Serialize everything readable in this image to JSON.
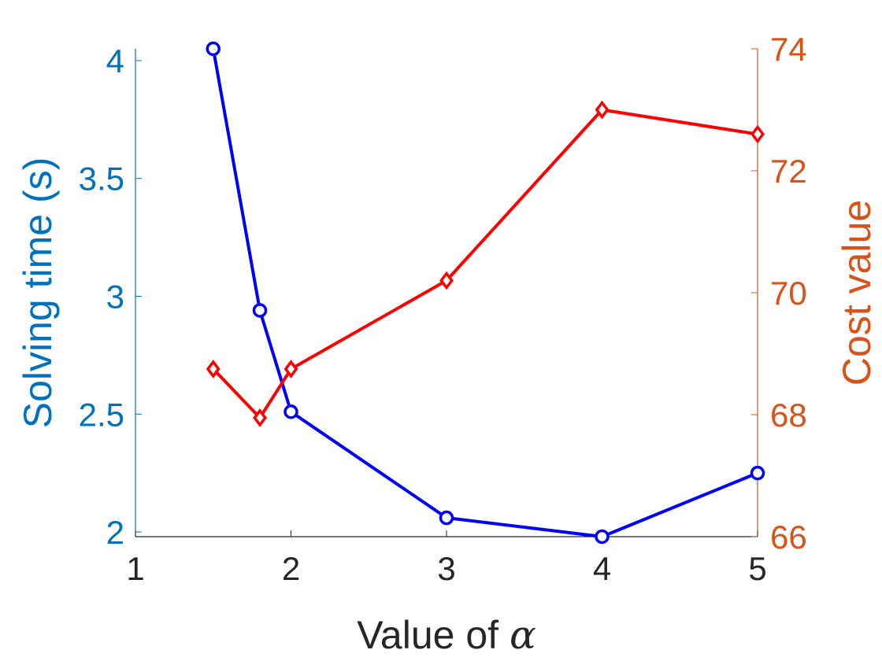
{
  "chart_data": {
    "type": "line",
    "x": [
      1.5,
      1.8,
      2,
      3,
      4,
      5
    ],
    "xlim": [
      1,
      5
    ],
    "x_ticks": [
      "1",
      "2",
      "3",
      "4",
      "5"
    ],
    "xlabel": "Value of ",
    "xlabel_symbol": "α",
    "y_left": {
      "label": "Solving time (s)",
      "lim": [
        1.98,
        4.05
      ],
      "ticks": [
        "2",
        "2.5",
        "3",
        "3.5",
        "4"
      ],
      "color": "#0072BD"
    },
    "y_right": {
      "label": "Cost value",
      "lim": [
        66,
        74
      ],
      "ticks": [
        "66",
        "68",
        "70",
        "72",
        "74"
      ],
      "color": "#D95319"
    },
    "series": [
      {
        "axis": "left",
        "values": [
          4.05,
          2.94,
          2.51,
          2.06,
          1.98,
          2.25
        ],
        "color": "#0000FF",
        "marker": "circle"
      },
      {
        "axis": "right",
        "values": [
          68.75,
          67.95,
          68.75,
          70.2,
          73,
          72.6
        ],
        "color": "#FF0000",
        "marker": "diamond"
      }
    ],
    "grid": false
  }
}
